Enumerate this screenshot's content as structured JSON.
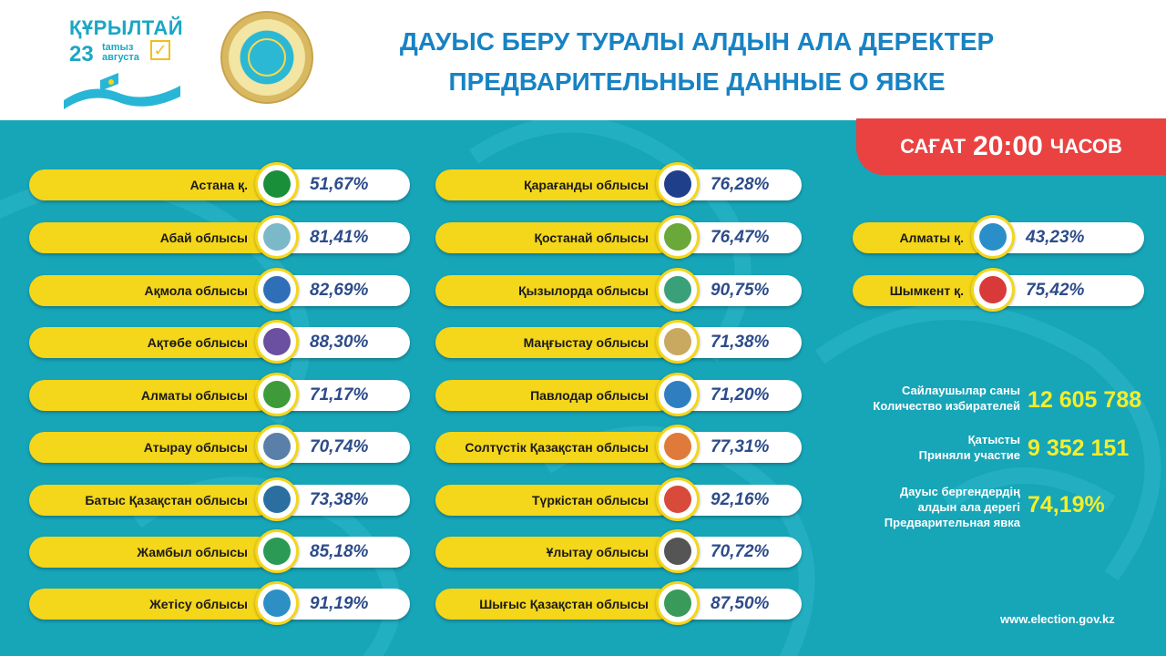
{
  "brand": {
    "title": "ҚҰРЫЛТАЙ",
    "day": "23",
    "month_kz": "tamыз",
    "month_ru": "августа",
    "check": "✓"
  },
  "title_kz": "ДАУЫС БЕРУ ТУРАЛЫ АЛДЫН АЛА ДЕРЕКТЕР",
  "title_ru": "ПРЕДВАРИТЕЛЬНЫЕ ДАННЫЕ О ЯВКЕ",
  "time_badge": {
    "prefix": "САҒАТ",
    "time": "20:00",
    "suffix": "ЧАСОВ"
  },
  "regions": [
    {
      "name": "Астана қ.",
      "pct": "51,67%",
      "emblem_color": "#1a8f3a"
    },
    {
      "name": "Абай облысы",
      "pct": "81,41%",
      "emblem_color": "#7bb8c8"
    },
    {
      "name": "Ақмола облысы",
      "pct": "82,69%",
      "emblem_color": "#2f6fb8"
    },
    {
      "name": "Ақтөбе облысы",
      "pct": "88,30%",
      "emblem_color": "#6b4fa0"
    },
    {
      "name": "Алматы облысы",
      "pct": "71,17%",
      "emblem_color": "#3f9a3a"
    },
    {
      "name": "Атырау облысы",
      "pct": "70,74%",
      "emblem_color": "#5a7fa8"
    },
    {
      "name": "Батыс Қазақстан облысы",
      "pct": "73,38%",
      "emblem_color": "#2a6fa0"
    },
    {
      "name": "Жамбыл облысы",
      "pct": "85,18%",
      "emblem_color": "#2b9a55"
    },
    {
      "name": "Жетісу облысы",
      "pct": "91,19%",
      "emblem_color": "#2d8fc4"
    },
    {
      "name": "Қарағанды облысы",
      "pct": "76,28%",
      "emblem_color": "#1f3f8a"
    },
    {
      "name": "Қостанай облысы",
      "pct": "76,47%",
      "emblem_color": "#6aa83a"
    },
    {
      "name": "Қызылорда облысы",
      "pct": "90,75%",
      "emblem_color": "#3aa07a"
    },
    {
      "name": "Маңғыстау облысы",
      "pct": "71,38%",
      "emblem_color": "#c9a860"
    },
    {
      "name": "Павлодар облысы",
      "pct": "71,20%",
      "emblem_color": "#2f7fc0"
    },
    {
      "name": "Солтүстік Қазақстан облысы",
      "pct": "77,31%",
      "emblem_color": "#e07a3a"
    },
    {
      "name": "Түркістан облысы",
      "pct": "92,16%",
      "emblem_color": "#d84a3a"
    },
    {
      "name": "Ұлытау облысы",
      "pct": "70,72%",
      "emblem_color": "#555555"
    },
    {
      "name": "Шығыс Қазақстан облысы",
      "pct": "87,50%",
      "emblem_color": "#3a9a5a"
    },
    {
      "name": "Алматы қ.",
      "pct": "43,23%",
      "emblem_color": "#2a8fc8"
    },
    {
      "name": "Шымкент қ.",
      "pct": "75,42%",
      "emblem_color": "#d83a3a"
    }
  ],
  "stats": {
    "voters_label_kz": "Сайлаушылар саны",
    "voters_label_ru": "Количество избирателей",
    "voters_value": "12 605 788",
    "participated_label_kz": "Қатысты",
    "participated_label_ru": "Приняли участие",
    "participated_value": "9 352 151",
    "turnout_label_kz1": "Дауыс бергендердің",
    "turnout_label_kz2": "алдын ала дерегі",
    "turnout_label_ru": "Предварительная явка",
    "turnout_value": "74,19%"
  },
  "website": "www.election.gov.kz",
  "colors": {
    "teal": "#17a5b8",
    "yellow": "#f4d61a",
    "red": "#ea4141",
    "blue_title": "#1783c4",
    "pct_text": "#2d4c8a"
  }
}
